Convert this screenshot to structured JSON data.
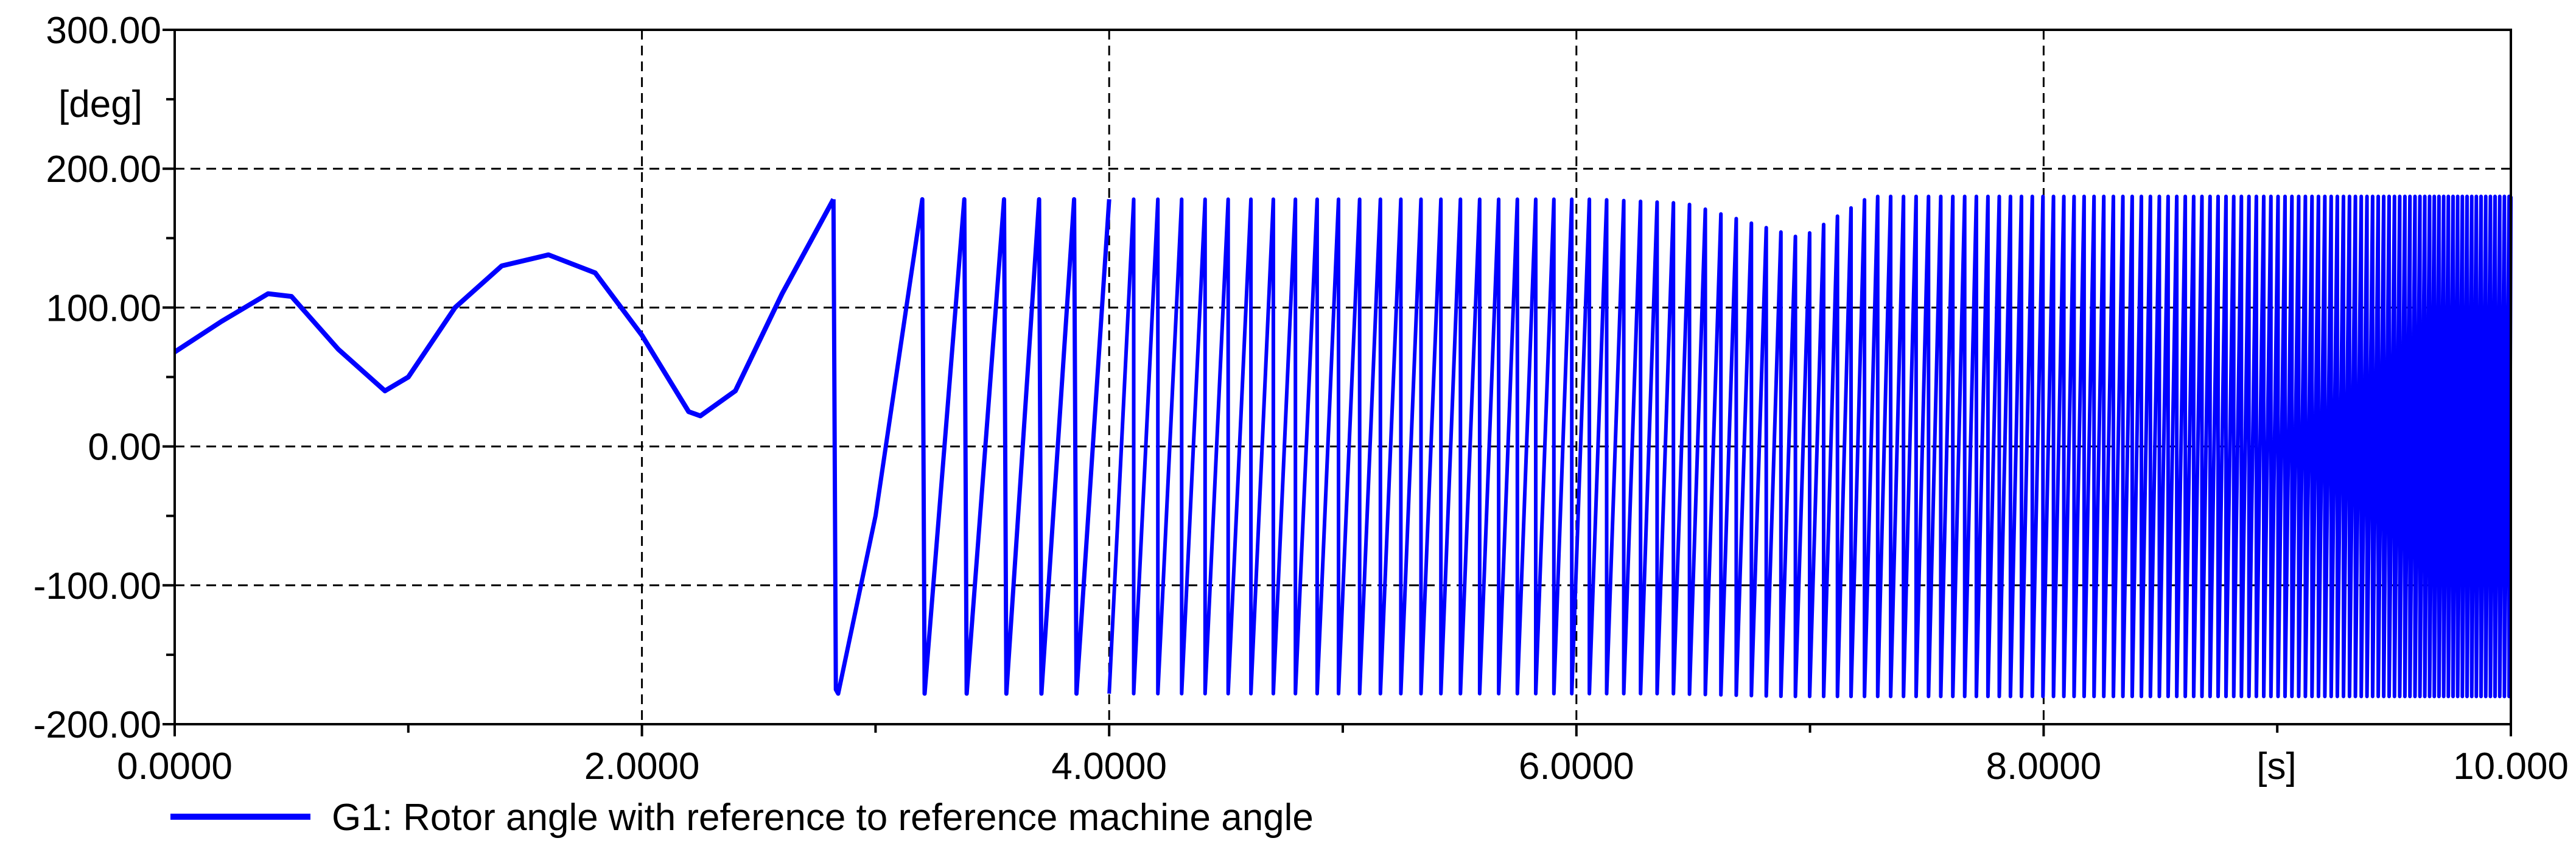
{
  "chart_data": {
    "type": "line",
    "title": "",
    "xlabel": "[s]",
    "ylabel": "[deg]",
    "xlim": [
      0,
      10
    ],
    "ylim": [
      -200,
      300
    ],
    "grid": true,
    "legend_position": "bottom-left",
    "x_ticks": [
      0,
      2,
      4,
      6,
      8,
      10
    ],
    "x_tick_labels": [
      "0.0000",
      "2.0000",
      "4.0000",
      "6.0000",
      "8.0000",
      "10.000"
    ],
    "y_ticks": [
      -200,
      -100,
      0,
      100,
      200,
      300
    ],
    "y_tick_labels": [
      "-200.00",
      "-100.00",
      "0.00",
      "100.00",
      "200.00",
      "300.00"
    ],
    "series": [
      {
        "name": "G1: Rotor angle with reference to reference machine angle",
        "color": "#0000ff",
        "x": [
          0,
          0.2,
          0.4,
          0.5,
          0.7,
          0.9,
          1.0,
          1.2,
          1.4,
          1.6,
          1.8,
          2.0,
          2.2,
          2.25,
          2.4,
          2.6,
          2.82,
          2.83,
          2.84,
          3.0,
          3.2,
          3.21,
          3.38,
          3.39,
          3.55,
          3.56,
          3.7,
          3.71,
          3.85,
          3.86,
          4.0,
          5.0,
          6.0,
          6.4,
          6.9,
          7.1,
          8.0,
          9.0,
          10.0
        ],
        "y": [
          68,
          90,
          110,
          108,
          70,
          40,
          50,
          100,
          130,
          138,
          125,
          80,
          25,
          22,
          40,
          110,
          178,
          -175,
          -178,
          -50,
          178,
          -178,
          178,
          -178,
          178,
          -178,
          178,
          -178,
          178,
          -178,
          178,
          178,
          178,
          170,
          145,
          175,
          175,
          175,
          175
        ],
        "oscillation_envelope_upper": {
          "x": [
            2.82,
            4.0,
            6.0,
            6.4,
            6.9,
            7.2,
            8.0,
            10.0
          ],
          "y": [
            178,
            178,
            178,
            175,
            150,
            180,
            180,
            180
          ]
        },
        "oscillation_envelope_lower": {
          "x": [
            2.82,
            4.0,
            5.5,
            6.0,
            6.4,
            6.9,
            7.2,
            8.0,
            10.0
          ],
          "y": [
            -178,
            -178,
            -178,
            -178,
            -178,
            -180,
            -180,
            -180,
            -180
          ]
        }
      }
    ]
  }
}
